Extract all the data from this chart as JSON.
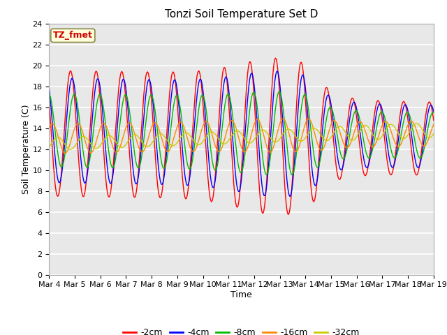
{
  "title": "Tonzi Soil Temperature Set D",
  "xlabel": "Time",
  "ylabel": "Soil Temperature (C)",
  "ylim": [
    0,
    24
  ],
  "yticks": [
    0,
    2,
    4,
    6,
    8,
    10,
    12,
    14,
    16,
    18,
    20,
    22,
    24
  ],
  "x_labels": [
    "Mar 4",
    "Mar 5",
    "Mar 6",
    "Mar 7",
    "Mar 8",
    "Mar 9",
    "Mar 10",
    "Mar 11",
    "Mar 12",
    "Mar 13",
    "Mar 14",
    "Mar 15",
    "Mar 16",
    "Mar 17",
    "Mar 18",
    "Mar 19"
  ],
  "annotation_text": "TZ_fmet",
  "annotation_color": "#cc0000",
  "annotation_bg": "#ffffdd",
  "annotation_border": "#888844",
  "series": [
    {
      "label": "-2cm",
      "color": "#ff0000"
    },
    {
      "label": "-4cm",
      "color": "#0000ff"
    },
    {
      "label": "-8cm",
      "color": "#00bb00"
    },
    {
      "label": "-16cm",
      "color": "#ff8800"
    },
    {
      "label": "-32cm",
      "color": "#cccc00"
    }
  ],
  "bg_color": "#e8e8e8",
  "grid_color": "#ffffff",
  "title_fontsize": 11,
  "axis_fontsize": 9,
  "tick_fontsize": 8,
  "legend_fontsize": 9
}
